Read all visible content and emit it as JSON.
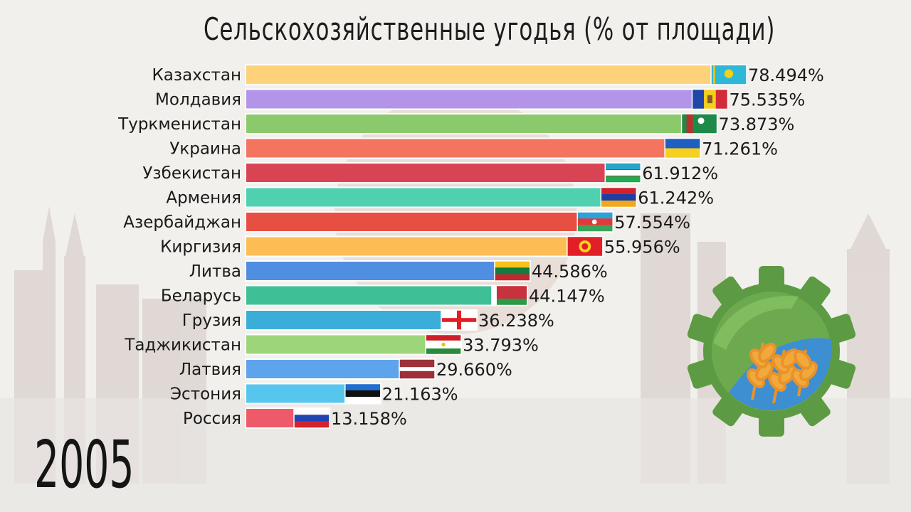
{
  "chart_data": {
    "type": "bar",
    "orientation": "horizontal",
    "title": "Сельскохозяйственные угодья (% от площади)",
    "period": "2005",
    "xlim": [
      0,
      80
    ],
    "grid": false,
    "legend": "none",
    "bars": [
      {
        "label": "Казахстан",
        "value": 78.494,
        "display": "78.494%",
        "color": "#fdd27a",
        "flag": "kazakhstan-flag"
      },
      {
        "label": "Молдавия",
        "value": 75.535,
        "display": "75.535%",
        "color": "#b394e8",
        "flag": "moldova-flag"
      },
      {
        "label": "Туркменистан",
        "value": 73.873,
        "display": "73.873%",
        "color": "#8ac96c",
        "flag": "turkmenistan-flag"
      },
      {
        "label": "Украина",
        "value": 71.261,
        "display": "71.261%",
        "color": "#f47460",
        "flag": "ukraine-flag"
      },
      {
        "label": "Узбекистан",
        "value": 61.912,
        "display": "61.912%",
        "color": "#d94455",
        "flag": "uzbekistan-flag"
      },
      {
        "label": "Армения",
        "value": 61.242,
        "display": "61.242%",
        "color": "#4fd1b0",
        "flag": "armenia-flag"
      },
      {
        "label": "Азербайджан",
        "value": 57.554,
        "display": "57.554%",
        "color": "#e84f43",
        "flag": "azerbaijan-flag"
      },
      {
        "label": "Киргизия",
        "value": 55.956,
        "display": "55.956%",
        "color": "#fcbd55",
        "flag": "kyrgyzstan-flag"
      },
      {
        "label": "Литва",
        "value": 44.586,
        "display": "44.586%",
        "color": "#4f8ee0",
        "flag": "lithuania-flag"
      },
      {
        "label": "Беларусь",
        "value": 44.147,
        "display": "44.147%",
        "color": "#3fbf95",
        "flag": "belarus-flag"
      },
      {
        "label": "Грузия",
        "value": 36.238,
        "display": "36.238%",
        "color": "#3aaed8",
        "flag": "georgia-flag"
      },
      {
        "label": "Таджикистан",
        "value": 33.793,
        "display": "33.793%",
        "color": "#9dd67a",
        "flag": "tajikistan-flag"
      },
      {
        "label": "Латвия",
        "value": 29.66,
        "display": "29.660%",
        "color": "#5ea4ec",
        "flag": "latvia-flag"
      },
      {
        "label": "Эстония",
        "value": 21.163,
        "display": "21.163%",
        "color": "#57c6ee",
        "flag": "estonia-flag"
      },
      {
        "label": "Россия",
        "value": 13.158,
        "display": "13.158%",
        "color": "#ef5a6a",
        "flag": "russia-flag"
      }
    ]
  },
  "decor": {
    "icon": "agriculture-gear-icon",
    "gear_color": "#5c9b43",
    "wheat_color": "#f2a93b",
    "field_color": "#3d8fd1"
  }
}
